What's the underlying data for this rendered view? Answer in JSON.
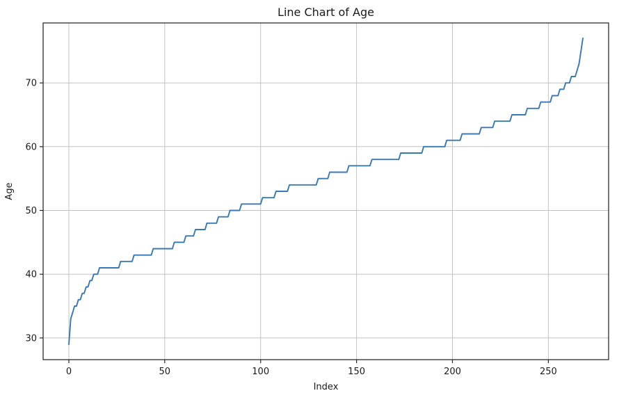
{
  "chart_data": {
    "type": "line",
    "title": "Line Chart of Age",
    "xlabel": "Index",
    "ylabel": "Age",
    "x_ticks": [
      0,
      50,
      100,
      150,
      200,
      250
    ],
    "y_ticks": [
      30,
      40,
      50,
      60,
      70
    ],
    "xlim": [
      -13.4,
      281.4
    ],
    "ylim": [
      26.6,
      79.4
    ],
    "grid": true,
    "legend": "none",
    "line_color": "#3878b4",
    "n_points": 269,
    "x_values": "0..268 (record index, ages sorted ascending)",
    "series": [
      {
        "name": "Age",
        "value_runs_age_count": [
          [
            29,
            1
          ],
          [
            33,
            1
          ],
          [
            34,
            1
          ],
          [
            35,
            2
          ],
          [
            36,
            2
          ],
          [
            37,
            2
          ],
          [
            38,
            2
          ],
          [
            39,
            2
          ],
          [
            40,
            3
          ],
          [
            41,
            11
          ],
          [
            42,
            7
          ],
          [
            43,
            10
          ],
          [
            44,
            11
          ],
          [
            45,
            6
          ],
          [
            46,
            5
          ],
          [
            47,
            6
          ],
          [
            48,
            6
          ],
          [
            49,
            6
          ],
          [
            50,
            6
          ],
          [
            51,
            11
          ],
          [
            52,
            7
          ],
          [
            53,
            7
          ],
          [
            54,
            15
          ],
          [
            55,
            6
          ],
          [
            56,
            10
          ],
          [
            57,
            12
          ],
          [
            58,
            15
          ],
          [
            59,
            12
          ],
          [
            60,
            12
          ],
          [
            61,
            8
          ],
          [
            62,
            10
          ],
          [
            63,
            7
          ],
          [
            64,
            9
          ],
          [
            65,
            8
          ],
          [
            66,
            7
          ],
          [
            67,
            6
          ],
          [
            68,
            4
          ],
          [
            69,
            3
          ],
          [
            70,
            3
          ],
          [
            71,
            3
          ],
          [
            72,
            1
          ],
          [
            73,
            1
          ],
          [
            75,
            1
          ],
          [
            77,
            1
          ]
        ]
      }
    ],
    "y_min": 29,
    "y_max": 77
  }
}
